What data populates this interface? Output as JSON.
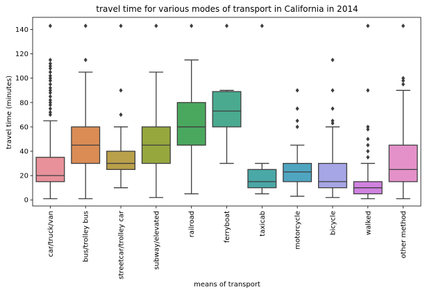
{
  "chart_data": {
    "type": "boxplot",
    "title": "travel time for various modes of transport in California in 2014",
    "xlabel": "means of transport",
    "ylabel": "travel time (minutes)",
    "ylim": [
      -5,
      150
    ],
    "yticks": [
      0,
      20,
      40,
      60,
      80,
      100,
      120,
      140
    ],
    "grid": false,
    "legend": "none",
    "categories": [
      "car/truck/van",
      "bus/trolley bus",
      "streetcar/trolley car",
      "subway/elevated",
      "railroad",
      "ferryboat",
      "taxicab",
      "motorcycle",
      "bicycle",
      "walked",
      "other method"
    ],
    "boxes": [
      {
        "whisker_low": 1,
        "q1": 15,
        "median": 20,
        "q3": 35,
        "whisker_high": 65,
        "color": "#e8919b",
        "outliers": [
          70,
          72,
          75,
          78,
          80,
          82,
          85,
          88,
          90,
          92,
          95,
          98,
          100,
          102,
          105,
          108,
          110,
          112,
          115,
          143
        ]
      },
      {
        "whisker_low": 1,
        "q1": 30,
        "median": 45,
        "q3": 60,
        "whisker_high": 105,
        "color": "#db8c55",
        "outliers": [
          115,
          143
        ]
      },
      {
        "whisker_low": 10,
        "q1": 25,
        "median": 30,
        "q3": 40,
        "whisker_high": 60,
        "color": "#b9a04a",
        "outliers": [
          70,
          90,
          143
        ]
      },
      {
        "whisker_low": 2,
        "q1": 30,
        "median": 45,
        "q3": 60,
        "whisker_high": 105,
        "color": "#96a73e",
        "outliers": [
          143
        ]
      },
      {
        "whisker_low": 5,
        "q1": 45,
        "median": 60,
        "q3": 80,
        "whisker_high": 115,
        "color": "#4aa85e",
        "outliers": [
          143
        ]
      },
      {
        "whisker_low": 30,
        "q1": 60,
        "median": 73,
        "q3": 89,
        "whisker_high": 90,
        "color": "#4aaa8f",
        "outliers": [
          143
        ]
      },
      {
        "whisker_low": 5,
        "q1": 10,
        "median": 15,
        "q3": 25,
        "whisker_high": 30,
        "color": "#4aa8a6",
        "outliers": [
          143
        ]
      },
      {
        "whisker_low": 3,
        "q1": 15,
        "median": 23,
        "q3": 30,
        "whisker_high": 45,
        "color": "#4fa5c0",
        "outliers": [
          60,
          65,
          75,
          90
        ]
      },
      {
        "whisker_low": 2,
        "q1": 10,
        "median": 15,
        "q3": 30,
        "whisker_high": 60,
        "color": "#a6a6e6",
        "outliers": [
          63,
          65,
          75,
          90,
          115
        ]
      },
      {
        "whisker_low": 1,
        "q1": 5,
        "median": 10,
        "q3": 15,
        "whisker_high": 30,
        "color": "#d083e0",
        "outliers": [
          35,
          40,
          45,
          50,
          58,
          60,
          90,
          143
        ]
      },
      {
        "whisker_low": 1,
        "q1": 15,
        "median": 25,
        "q3": 45,
        "whisker_high": 90,
        "color": "#e491c9",
        "outliers": [
          95,
          98,
          100,
          143
        ]
      }
    ]
  }
}
